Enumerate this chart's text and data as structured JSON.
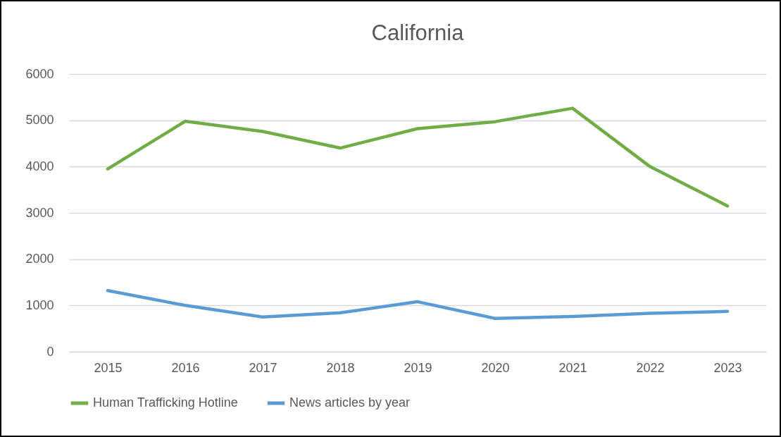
{
  "chart_data": {
    "type": "line",
    "title": "California",
    "categories": [
      "2015",
      "2016",
      "2017",
      "2018",
      "2019",
      "2020",
      "2021",
      "2022",
      "2023"
    ],
    "series": [
      {
        "name": "Human Trafficking Hotline",
        "color": "#70ad47",
        "values": [
          3950,
          4980,
          4760,
          4400,
          4820,
          4970,
          5260,
          4000,
          3150
        ]
      },
      {
        "name": "News articles by year",
        "color": "#5b9bd5",
        "values": [
          1320,
          1000,
          750,
          840,
          1080,
          720,
          760,
          830,
          870
        ]
      }
    ],
    "ylim": [
      0,
      6000
    ],
    "yticks": [
      0,
      1000,
      2000,
      3000,
      4000,
      5000,
      6000
    ],
    "grid": "y",
    "legend": "bottom"
  }
}
